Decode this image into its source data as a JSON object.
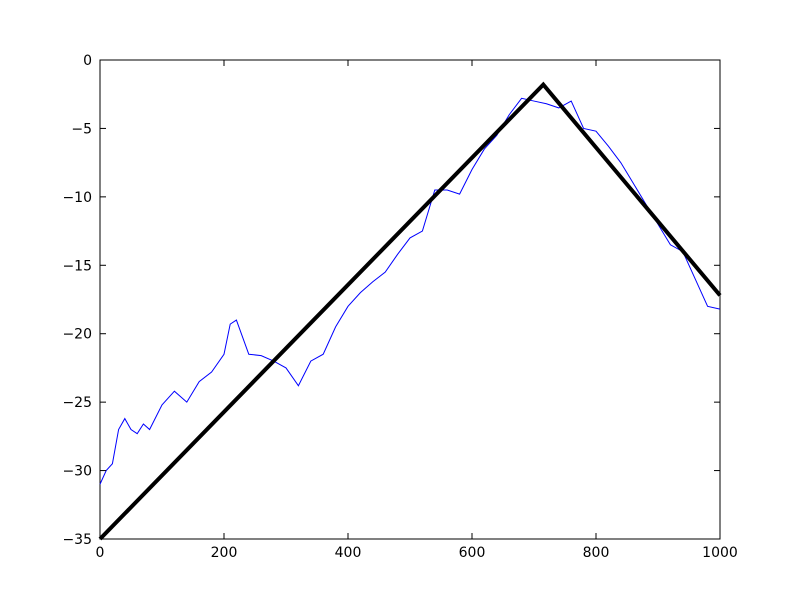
{
  "chart_data": {
    "type": "line",
    "series": [
      {
        "color": "#0000ff",
        "width": 1,
        "x": [
          0,
          10,
          20,
          30,
          40,
          50,
          60,
          70,
          80,
          100,
          120,
          140,
          160,
          180,
          200,
          210,
          220,
          240,
          260,
          280,
          300,
          320,
          340,
          360,
          380,
          400,
          420,
          440,
          460,
          480,
          500,
          520,
          540,
          560,
          580,
          600,
          620,
          640,
          660,
          680,
          700,
          720,
          740,
          760,
          780,
          800,
          820,
          840,
          860,
          880,
          900,
          920,
          940,
          960,
          980,
          1000
        ],
        "values": [
          -31,
          -30,
          -29.5,
          -27,
          -26.2,
          -27,
          -27.3,
          -26.6,
          -27,
          -25.2,
          -24.2,
          -25,
          -23.5,
          -22.8,
          -21.5,
          -19.3,
          -19,
          -21.5,
          -21.6,
          -22,
          -22.5,
          -23.8,
          -22,
          -21.5,
          -19.5,
          -18,
          -17,
          -16.2,
          -15.5,
          -14.2,
          -13,
          -12.5,
          -9.5,
          -9.5,
          -9.8,
          -8,
          -6.5,
          -5.5,
          -4,
          -2.8,
          -3,
          -3.2,
          -3.5,
          -3,
          -5,
          -5.2,
          -6.3,
          -7.5,
          -9,
          -10.5,
          -12,
          -13.5,
          -14,
          -16,
          -18,
          -18.2
        ]
      },
      {
        "color": "#000000",
        "width": 4,
        "x": [
          0,
          715,
          1000
        ],
        "values": [
          -35,
          -1.8,
          -17.2
        ]
      }
    ],
    "xlim": [
      0,
      1000
    ],
    "xticks": [
      0,
      200,
      400,
      600,
      800,
      1000
    ],
    "ylim": [
      -35,
      0
    ],
    "yticks": [
      {
        "value": -35,
        "label": "−35"
      },
      {
        "value": -30,
        "label": "−30"
      },
      {
        "value": -25,
        "label": "−25"
      },
      {
        "value": -20,
        "label": "−20"
      },
      {
        "value": -15,
        "label": "−15"
      },
      {
        "value": -10,
        "label": "−10"
      },
      {
        "value": -5,
        "label": "−5"
      },
      0
    ]
  }
}
